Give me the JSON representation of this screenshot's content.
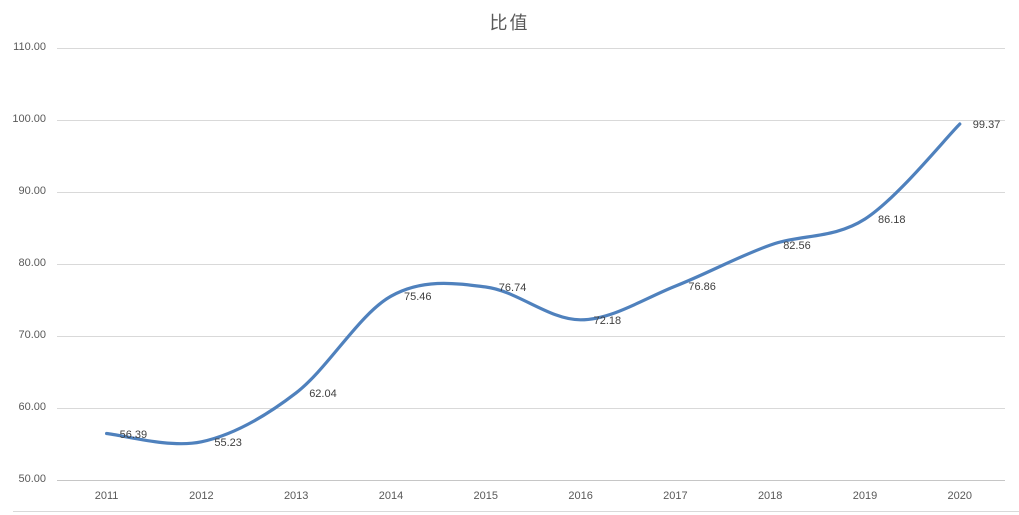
{
  "chart_data": {
    "type": "line",
    "title": "比值",
    "categories": [
      "2011",
      "2012",
      "2013",
      "2014",
      "2015",
      "2016",
      "2017",
      "2018",
      "2019",
      "2020"
    ],
    "values": [
      56.39,
      55.23,
      62.04,
      75.46,
      76.74,
      72.18,
      76.86,
      82.56,
      86.18,
      99.37
    ],
    "data_labels": [
      "56.39",
      "55.23",
      "62.04",
      "75.46",
      "76.74",
      "72.18",
      "76.86",
      "82.56",
      "86.18",
      "99.37"
    ],
    "y_ticks": [
      110,
      100,
      90,
      80,
      70,
      60,
      50
    ],
    "y_tick_labels": [
      "110.00",
      "100.00",
      "90.00",
      "80.00",
      "70.00",
      "60.00",
      "50.00"
    ],
    "ylim": [
      50,
      110
    ],
    "grid": true,
    "smooth_line": true,
    "legend_position": "none",
    "colors": {
      "series_line": "#4f81bd",
      "gridline": "#d9d9d9",
      "axis_line": "#c6c6c6",
      "title_text": "#595959",
      "tick_text": "#595959",
      "data_label_text": "#404040",
      "background": "#ffffff"
    }
  }
}
